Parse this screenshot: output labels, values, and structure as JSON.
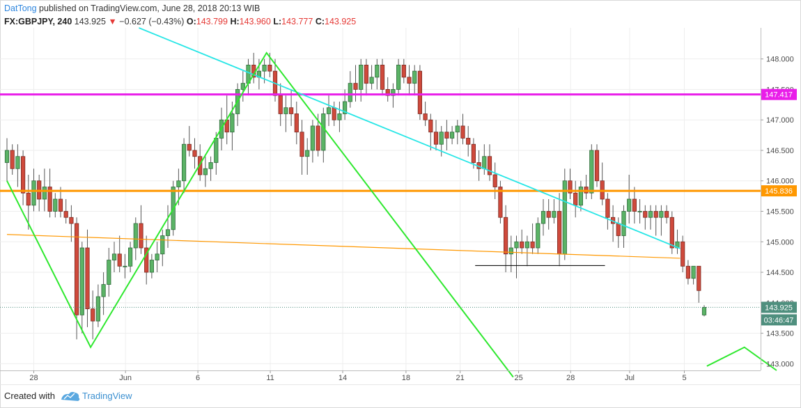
{
  "header": {
    "author": "DatTong",
    "published_text": "published on TradingView.com, June 28, 2018 20:13 WIB",
    "symbol": "FX:GBPJPY, 240",
    "last": "143.925",
    "change_arrow": "▼",
    "change": "−0.627 (−0.43%)",
    "open_label": "O:",
    "open": "143.799",
    "high_label": "H:",
    "high": "143.960",
    "low_label": "L:",
    "low": "143.777",
    "close_label": "C:",
    "close": "143.925"
  },
  "footer": {
    "created_with": "Created with",
    "brand": "TradingView"
  },
  "chart_data": {
    "type": "candlestick",
    "symbol": "FX:GBPJPY",
    "interval": "240",
    "y_ticks": [
      "148.000",
      "147.500",
      "147.000",
      "146.500",
      "146.000",
      "145.500",
      "145.000",
      "144.500",
      "144.000",
      "143.500",
      "143.000"
    ],
    "ylim": [
      142.89,
      148.51
    ],
    "x_ticks": [
      "28",
      "Jun",
      "6",
      "11",
      "14",
      "18",
      "21",
      "25",
      "28",
      "Jul",
      "5"
    ],
    "price_labels": [
      {
        "value": "147.417",
        "color": "#e91ee9"
      },
      {
        "value": "145.836",
        "color": "#ff9800"
      },
      {
        "value": "143.925",
        "color": "#4f8f7e"
      },
      {
        "value": "03:46:47",
        "color": "#4f8f7e"
      }
    ],
    "horizontal_levels": [
      {
        "price": 147.417,
        "color": "#e91ee9"
      },
      {
        "price": 145.836,
        "color": "#ff9800"
      }
    ],
    "candles": [
      {
        "o": 146.3,
        "h": 146.7,
        "l": 146.0,
        "c": 146.5
      },
      {
        "o": 146.5,
        "h": 146.6,
        "l": 146.1,
        "c": 146.2
      },
      {
        "o": 146.2,
        "h": 146.6,
        "l": 145.9,
        "c": 146.4
      },
      {
        "o": 146.4,
        "h": 146.5,
        "l": 145.6,
        "c": 145.8
      },
      {
        "o": 145.8,
        "h": 146.1,
        "l": 145.2,
        "c": 145.6
      },
      {
        "o": 145.6,
        "h": 146.2,
        "l": 145.5,
        "c": 146.0
      },
      {
        "o": 146.0,
        "h": 146.1,
        "l": 145.5,
        "c": 145.7
      },
      {
        "o": 145.7,
        "h": 146.2,
        "l": 145.5,
        "c": 145.9
      },
      {
        "o": 145.9,
        "h": 146.2,
        "l": 145.4,
        "c": 145.5
      },
      {
        "o": 145.5,
        "h": 145.8,
        "l": 145.4,
        "c": 145.7
      },
      {
        "o": 145.7,
        "h": 145.9,
        "l": 145.4,
        "c": 145.5
      },
      {
        "o": 145.5,
        "h": 145.7,
        "l": 145.3,
        "c": 145.4
      },
      {
        "o": 145.4,
        "h": 145.6,
        "l": 145.0,
        "c": 145.3
      },
      {
        "o": 145.3,
        "h": 145.4,
        "l": 143.4,
        "c": 143.8
      },
      {
        "o": 143.8,
        "h": 145.0,
        "l": 143.5,
        "c": 144.9
      },
      {
        "o": 144.9,
        "h": 145.2,
        "l": 143.6,
        "c": 143.9
      },
      {
        "o": 143.9,
        "h": 144.2,
        "l": 143.4,
        "c": 143.7
      },
      {
        "o": 143.7,
        "h": 144.3,
        "l": 143.6,
        "c": 144.1
      },
      {
        "o": 144.1,
        "h": 144.5,
        "l": 143.8,
        "c": 144.3
      },
      {
        "o": 144.3,
        "h": 144.9,
        "l": 144.1,
        "c": 144.7
      },
      {
        "o": 144.7,
        "h": 145.0,
        "l": 144.5,
        "c": 144.8
      },
      {
        "o": 144.8,
        "h": 145.1,
        "l": 144.5,
        "c": 144.6
      },
      {
        "o": 144.6,
        "h": 144.8,
        "l": 144.4,
        "c": 144.6
      },
      {
        "o": 144.6,
        "h": 145.0,
        "l": 144.5,
        "c": 144.9
      },
      {
        "o": 144.9,
        "h": 145.4,
        "l": 144.7,
        "c": 145.3
      },
      {
        "o": 145.3,
        "h": 145.6,
        "l": 144.8,
        "c": 144.9
      },
      {
        "o": 144.9,
        "h": 145.1,
        "l": 144.3,
        "c": 144.5
      },
      {
        "o": 144.5,
        "h": 144.8,
        "l": 144.4,
        "c": 144.7
      },
      {
        "o": 144.7,
        "h": 145.0,
        "l": 144.5,
        "c": 144.8
      },
      {
        "o": 144.8,
        "h": 145.2,
        "l": 144.6,
        "c": 145.1
      },
      {
        "o": 145.1,
        "h": 145.6,
        "l": 144.9,
        "c": 145.2
      },
      {
        "o": 145.2,
        "h": 146.0,
        "l": 145.1,
        "c": 145.9
      },
      {
        "o": 145.9,
        "h": 146.2,
        "l": 145.6,
        "c": 146.0
      },
      {
        "o": 146.0,
        "h": 146.7,
        "l": 145.8,
        "c": 146.6
      },
      {
        "o": 146.6,
        "h": 146.9,
        "l": 146.4,
        "c": 146.5
      },
      {
        "o": 146.5,
        "h": 146.7,
        "l": 146.2,
        "c": 146.4
      },
      {
        "o": 146.4,
        "h": 146.6,
        "l": 146.0,
        "c": 146.1
      },
      {
        "o": 146.1,
        "h": 146.4,
        "l": 145.9,
        "c": 146.2
      },
      {
        "o": 146.2,
        "h": 146.4,
        "l": 146.0,
        "c": 146.3
      },
      {
        "o": 146.3,
        "h": 146.8,
        "l": 146.1,
        "c": 146.7
      },
      {
        "o": 146.7,
        "h": 147.2,
        "l": 146.5,
        "c": 147.0
      },
      {
        "o": 147.0,
        "h": 147.4,
        "l": 146.6,
        "c": 146.8
      },
      {
        "o": 146.8,
        "h": 147.3,
        "l": 146.5,
        "c": 147.1
      },
      {
        "o": 147.1,
        "h": 147.6,
        "l": 146.9,
        "c": 147.5
      },
      {
        "o": 147.5,
        "h": 147.8,
        "l": 147.3,
        "c": 147.6
      },
      {
        "o": 147.6,
        "h": 148.0,
        "l": 147.4,
        "c": 147.9
      },
      {
        "o": 147.9,
        "h": 148.1,
        "l": 147.6,
        "c": 147.7
      },
      {
        "o": 147.7,
        "h": 148.0,
        "l": 147.5,
        "c": 147.8
      },
      {
        "o": 147.8,
        "h": 148.0,
        "l": 147.6,
        "c": 147.9
      },
      {
        "o": 147.9,
        "h": 148.1,
        "l": 147.7,
        "c": 147.8
      },
      {
        "o": 147.8,
        "h": 148.0,
        "l": 147.3,
        "c": 147.4
      },
      {
        "o": 147.4,
        "h": 147.6,
        "l": 146.9,
        "c": 147.1
      },
      {
        "o": 147.1,
        "h": 147.4,
        "l": 146.8,
        "c": 147.2
      },
      {
        "o": 147.2,
        "h": 147.5,
        "l": 146.9,
        "c": 147.1
      },
      {
        "o": 147.1,
        "h": 147.3,
        "l": 146.6,
        "c": 146.8
      },
      {
        "o": 146.8,
        "h": 147.0,
        "l": 146.1,
        "c": 146.4
      },
      {
        "o": 146.4,
        "h": 146.7,
        "l": 146.1,
        "c": 146.5
      },
      {
        "o": 146.5,
        "h": 147.0,
        "l": 146.3,
        "c": 146.9
      },
      {
        "o": 146.9,
        "h": 147.1,
        "l": 146.4,
        "c": 146.5
      },
      {
        "o": 146.5,
        "h": 147.2,
        "l": 146.3,
        "c": 147.1
      },
      {
        "o": 147.1,
        "h": 147.4,
        "l": 146.9,
        "c": 147.2
      },
      {
        "o": 147.2,
        "h": 147.3,
        "l": 146.9,
        "c": 147.0
      },
      {
        "o": 147.0,
        "h": 147.3,
        "l": 146.8,
        "c": 147.1
      },
      {
        "o": 147.1,
        "h": 147.5,
        "l": 147.0,
        "c": 147.3
      },
      {
        "o": 147.3,
        "h": 147.8,
        "l": 147.2,
        "c": 147.6
      },
      {
        "o": 147.6,
        "h": 147.9,
        "l": 147.3,
        "c": 147.5
      },
      {
        "o": 147.5,
        "h": 148.0,
        "l": 147.3,
        "c": 147.9
      },
      {
        "o": 147.9,
        "h": 148.0,
        "l": 147.4,
        "c": 147.6
      },
      {
        "o": 147.6,
        "h": 147.9,
        "l": 147.5,
        "c": 147.7
      },
      {
        "o": 147.7,
        "h": 148.0,
        "l": 147.5,
        "c": 147.9
      },
      {
        "o": 147.9,
        "h": 148.0,
        "l": 147.4,
        "c": 147.5
      },
      {
        "o": 147.5,
        "h": 147.7,
        "l": 147.3,
        "c": 147.4
      },
      {
        "o": 147.4,
        "h": 147.6,
        "l": 147.2,
        "c": 147.5
      },
      {
        "o": 147.5,
        "h": 148.0,
        "l": 147.4,
        "c": 147.9
      },
      {
        "o": 147.9,
        "h": 148.0,
        "l": 147.6,
        "c": 147.7
      },
      {
        "o": 147.7,
        "h": 147.9,
        "l": 147.4,
        "c": 147.6
      },
      {
        "o": 147.6,
        "h": 147.9,
        "l": 147.4,
        "c": 147.8
      },
      {
        "o": 147.8,
        "h": 147.9,
        "l": 147.0,
        "c": 147.1
      },
      {
        "o": 147.1,
        "h": 147.3,
        "l": 146.9,
        "c": 147.0
      },
      {
        "o": 147.0,
        "h": 147.1,
        "l": 146.5,
        "c": 146.8
      },
      {
        "o": 146.8,
        "h": 147.0,
        "l": 146.5,
        "c": 146.6
      },
      {
        "o": 146.6,
        "h": 146.9,
        "l": 146.4,
        "c": 146.8
      },
      {
        "o": 146.8,
        "h": 147.0,
        "l": 146.5,
        "c": 146.7
      },
      {
        "o": 146.7,
        "h": 146.9,
        "l": 146.6,
        "c": 146.8
      },
      {
        "o": 146.8,
        "h": 147.0,
        "l": 146.6,
        "c": 146.9
      },
      {
        "o": 146.9,
        "h": 147.1,
        "l": 146.6,
        "c": 146.7
      },
      {
        "o": 146.7,
        "h": 146.9,
        "l": 146.4,
        "c": 146.6
      },
      {
        "o": 146.6,
        "h": 146.7,
        "l": 146.2,
        "c": 146.3
      },
      {
        "o": 146.3,
        "h": 146.5,
        "l": 146.0,
        "c": 146.2
      },
      {
        "o": 146.2,
        "h": 146.6,
        "l": 146.1,
        "c": 146.4
      },
      {
        "o": 146.4,
        "h": 146.6,
        "l": 146.0,
        "c": 146.1
      },
      {
        "o": 146.1,
        "h": 146.3,
        "l": 145.7,
        "c": 145.9
      },
      {
        "o": 145.9,
        "h": 146.0,
        "l": 145.3,
        "c": 145.4
      },
      {
        "o": 145.4,
        "h": 145.6,
        "l": 144.5,
        "c": 144.8
      },
      {
        "o": 144.8,
        "h": 145.1,
        "l": 144.5,
        "c": 144.9
      },
      {
        "o": 144.9,
        "h": 145.1,
        "l": 144.4,
        "c": 145.0
      },
      {
        "o": 145.0,
        "h": 145.2,
        "l": 144.8,
        "c": 144.9
      },
      {
        "o": 144.9,
        "h": 145.1,
        "l": 144.6,
        "c": 145.0
      },
      {
        "o": 145.0,
        "h": 145.3,
        "l": 144.8,
        "c": 144.9
      },
      {
        "o": 144.9,
        "h": 145.4,
        "l": 144.8,
        "c": 145.3
      },
      {
        "o": 145.3,
        "h": 145.7,
        "l": 145.1,
        "c": 145.5
      },
      {
        "o": 145.5,
        "h": 145.7,
        "l": 145.2,
        "c": 145.4
      },
      {
        "o": 145.4,
        "h": 145.7,
        "l": 145.3,
        "c": 145.5
      },
      {
        "o": 145.5,
        "h": 145.8,
        "l": 144.6,
        "c": 144.8
      },
      {
        "o": 144.8,
        "h": 146.2,
        "l": 144.7,
        "c": 146.0
      },
      {
        "o": 146.0,
        "h": 146.2,
        "l": 145.7,
        "c": 145.8
      },
      {
        "o": 145.8,
        "h": 146.0,
        "l": 145.4,
        "c": 145.6
      },
      {
        "o": 145.6,
        "h": 146.0,
        "l": 145.5,
        "c": 145.9
      },
      {
        "o": 145.9,
        "h": 146.1,
        "l": 145.7,
        "c": 145.8
      },
      {
        "o": 145.8,
        "h": 146.6,
        "l": 145.7,
        "c": 146.5
      },
      {
        "o": 146.5,
        "h": 146.6,
        "l": 145.9,
        "c": 146.0
      },
      {
        "o": 146.0,
        "h": 146.3,
        "l": 145.6,
        "c": 145.7
      },
      {
        "o": 145.7,
        "h": 145.8,
        "l": 145.2,
        "c": 145.4
      },
      {
        "o": 145.4,
        "h": 145.6,
        "l": 145.0,
        "c": 145.3
      },
      {
        "o": 145.3,
        "h": 145.4,
        "l": 144.9,
        "c": 145.1
      },
      {
        "o": 145.1,
        "h": 145.6,
        "l": 144.9,
        "c": 145.5
      },
      {
        "o": 145.5,
        "h": 146.1,
        "l": 145.3,
        "c": 145.7
      },
      {
        "o": 145.7,
        "h": 145.9,
        "l": 145.3,
        "c": 145.5
      },
      {
        "o": 145.5,
        "h": 145.7,
        "l": 145.3,
        "c": 145.5
      },
      {
        "o": 145.5,
        "h": 145.6,
        "l": 145.2,
        "c": 145.4
      },
      {
        "o": 145.4,
        "h": 145.6,
        "l": 145.2,
        "c": 145.5
      },
      {
        "o": 145.5,
        "h": 145.6,
        "l": 145.1,
        "c": 145.4
      },
      {
        "o": 145.4,
        "h": 145.6,
        "l": 145.1,
        "c": 145.5
      },
      {
        "o": 145.5,
        "h": 145.6,
        "l": 145.3,
        "c": 145.4
      },
      {
        "o": 145.4,
        "h": 145.5,
        "l": 144.8,
        "c": 144.9
      },
      {
        "o": 144.9,
        "h": 145.2,
        "l": 144.8,
        "c": 145.0
      },
      {
        "o": 145.0,
        "h": 145.1,
        "l": 144.5,
        "c": 144.6
      },
      {
        "o": 144.6,
        "h": 144.7,
        "l": 144.3,
        "c": 144.4
      },
      {
        "o": 144.4,
        "h": 144.6,
        "l": 144.3,
        "c": 144.6
      },
      {
        "o": 144.6,
        "h": 144.6,
        "l": 144.0,
        "c": 144.2
      },
      {
        "o": 143.799,
        "h": 143.96,
        "l": 143.777,
        "c": 143.925
      }
    ],
    "trendlines": [
      {
        "color": "#27e6e6",
        "points": [
          {
            "bar": 24.6,
            "price": 148.51
          },
          {
            "bar": 125.5,
            "price": 144.89
          }
        ]
      },
      {
        "color": "#ff9800",
        "points": [
          {
            "bar": 0,
            "price": 145.12
          },
          {
            "bar": 125.5,
            "price": 144.73
          }
        ]
      },
      {
        "color": "#111111",
        "points": [
          {
            "bar": 87.3,
            "price": 144.61
          },
          {
            "bar": 111.5,
            "price": 144.61
          }
        ]
      }
    ],
    "zigzag": {
      "color": "#2ee82e",
      "legs": [
        [
          {
            "bar": 0,
            "price": 146.0
          },
          {
            "bar": 15.6,
            "price": 143.27
          },
          {
            "bar": 48.4,
            "price": 148.1
          },
          {
            "bar": 94.4,
            "price": 142.78
          }
        ],
        [
          {
            "bar": 130.5,
            "price": 142.96
          },
          {
            "bar": 137.5,
            "price": 143.27
          },
          {
            "bar": 143.5,
            "price": 142.89
          }
        ]
      ]
    }
  }
}
